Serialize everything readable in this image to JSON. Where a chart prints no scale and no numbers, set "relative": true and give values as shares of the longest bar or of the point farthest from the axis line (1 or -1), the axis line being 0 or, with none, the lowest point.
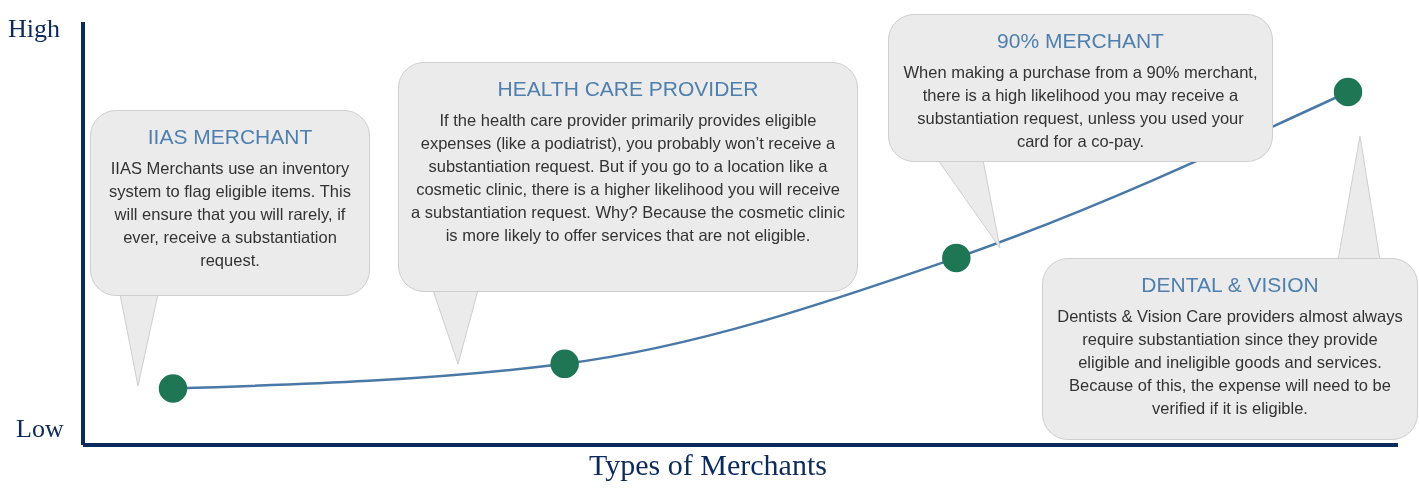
{
  "chart_data": {
    "type": "line",
    "relative": true,
    "xlabel": "Types of Merchants",
    "categories": [
      null,
      null,
      null,
      null
    ],
    "series": [
      {
        "color": "#4a79a8",
        "values": [
          0.16,
          0.23,
          0.53,
          1
        ]
      }
    ],
    "marker": "circle",
    "line_style": "solid",
    "annotations": [
      "High",
      "Low",
      "IIAS MERCHANT",
      "IIAS Merchants use an inventory system to flag eligible items. This will ensure that you will rarely, if ever, receive a substantiation request.",
      "HEALTH CARE PROVIDER",
      "If the health care provider primarily provides eligible expenses (like a podiatrist), you probably won’t receive a substantiation request. But if you go to a location like a cosmetic clinic, there is a higher likelihood you will receive a substantiation request. Why? Because the cosmetic clinic is more likely to offer services that are not eligible.",
      "90% MERCHANT",
      "When making a purchase from a 90% merchant, there is a high likelihood you may receive a substantiation request, unless you used your card for a co-pay.",
      "DENTAL & VISION",
      "Dentists & Vision Care providers almost always require substantiation since they provide eligible and ineligible goods and services. Because of this, the expense will need to be verified if it is eligible."
    ]
  }
}
